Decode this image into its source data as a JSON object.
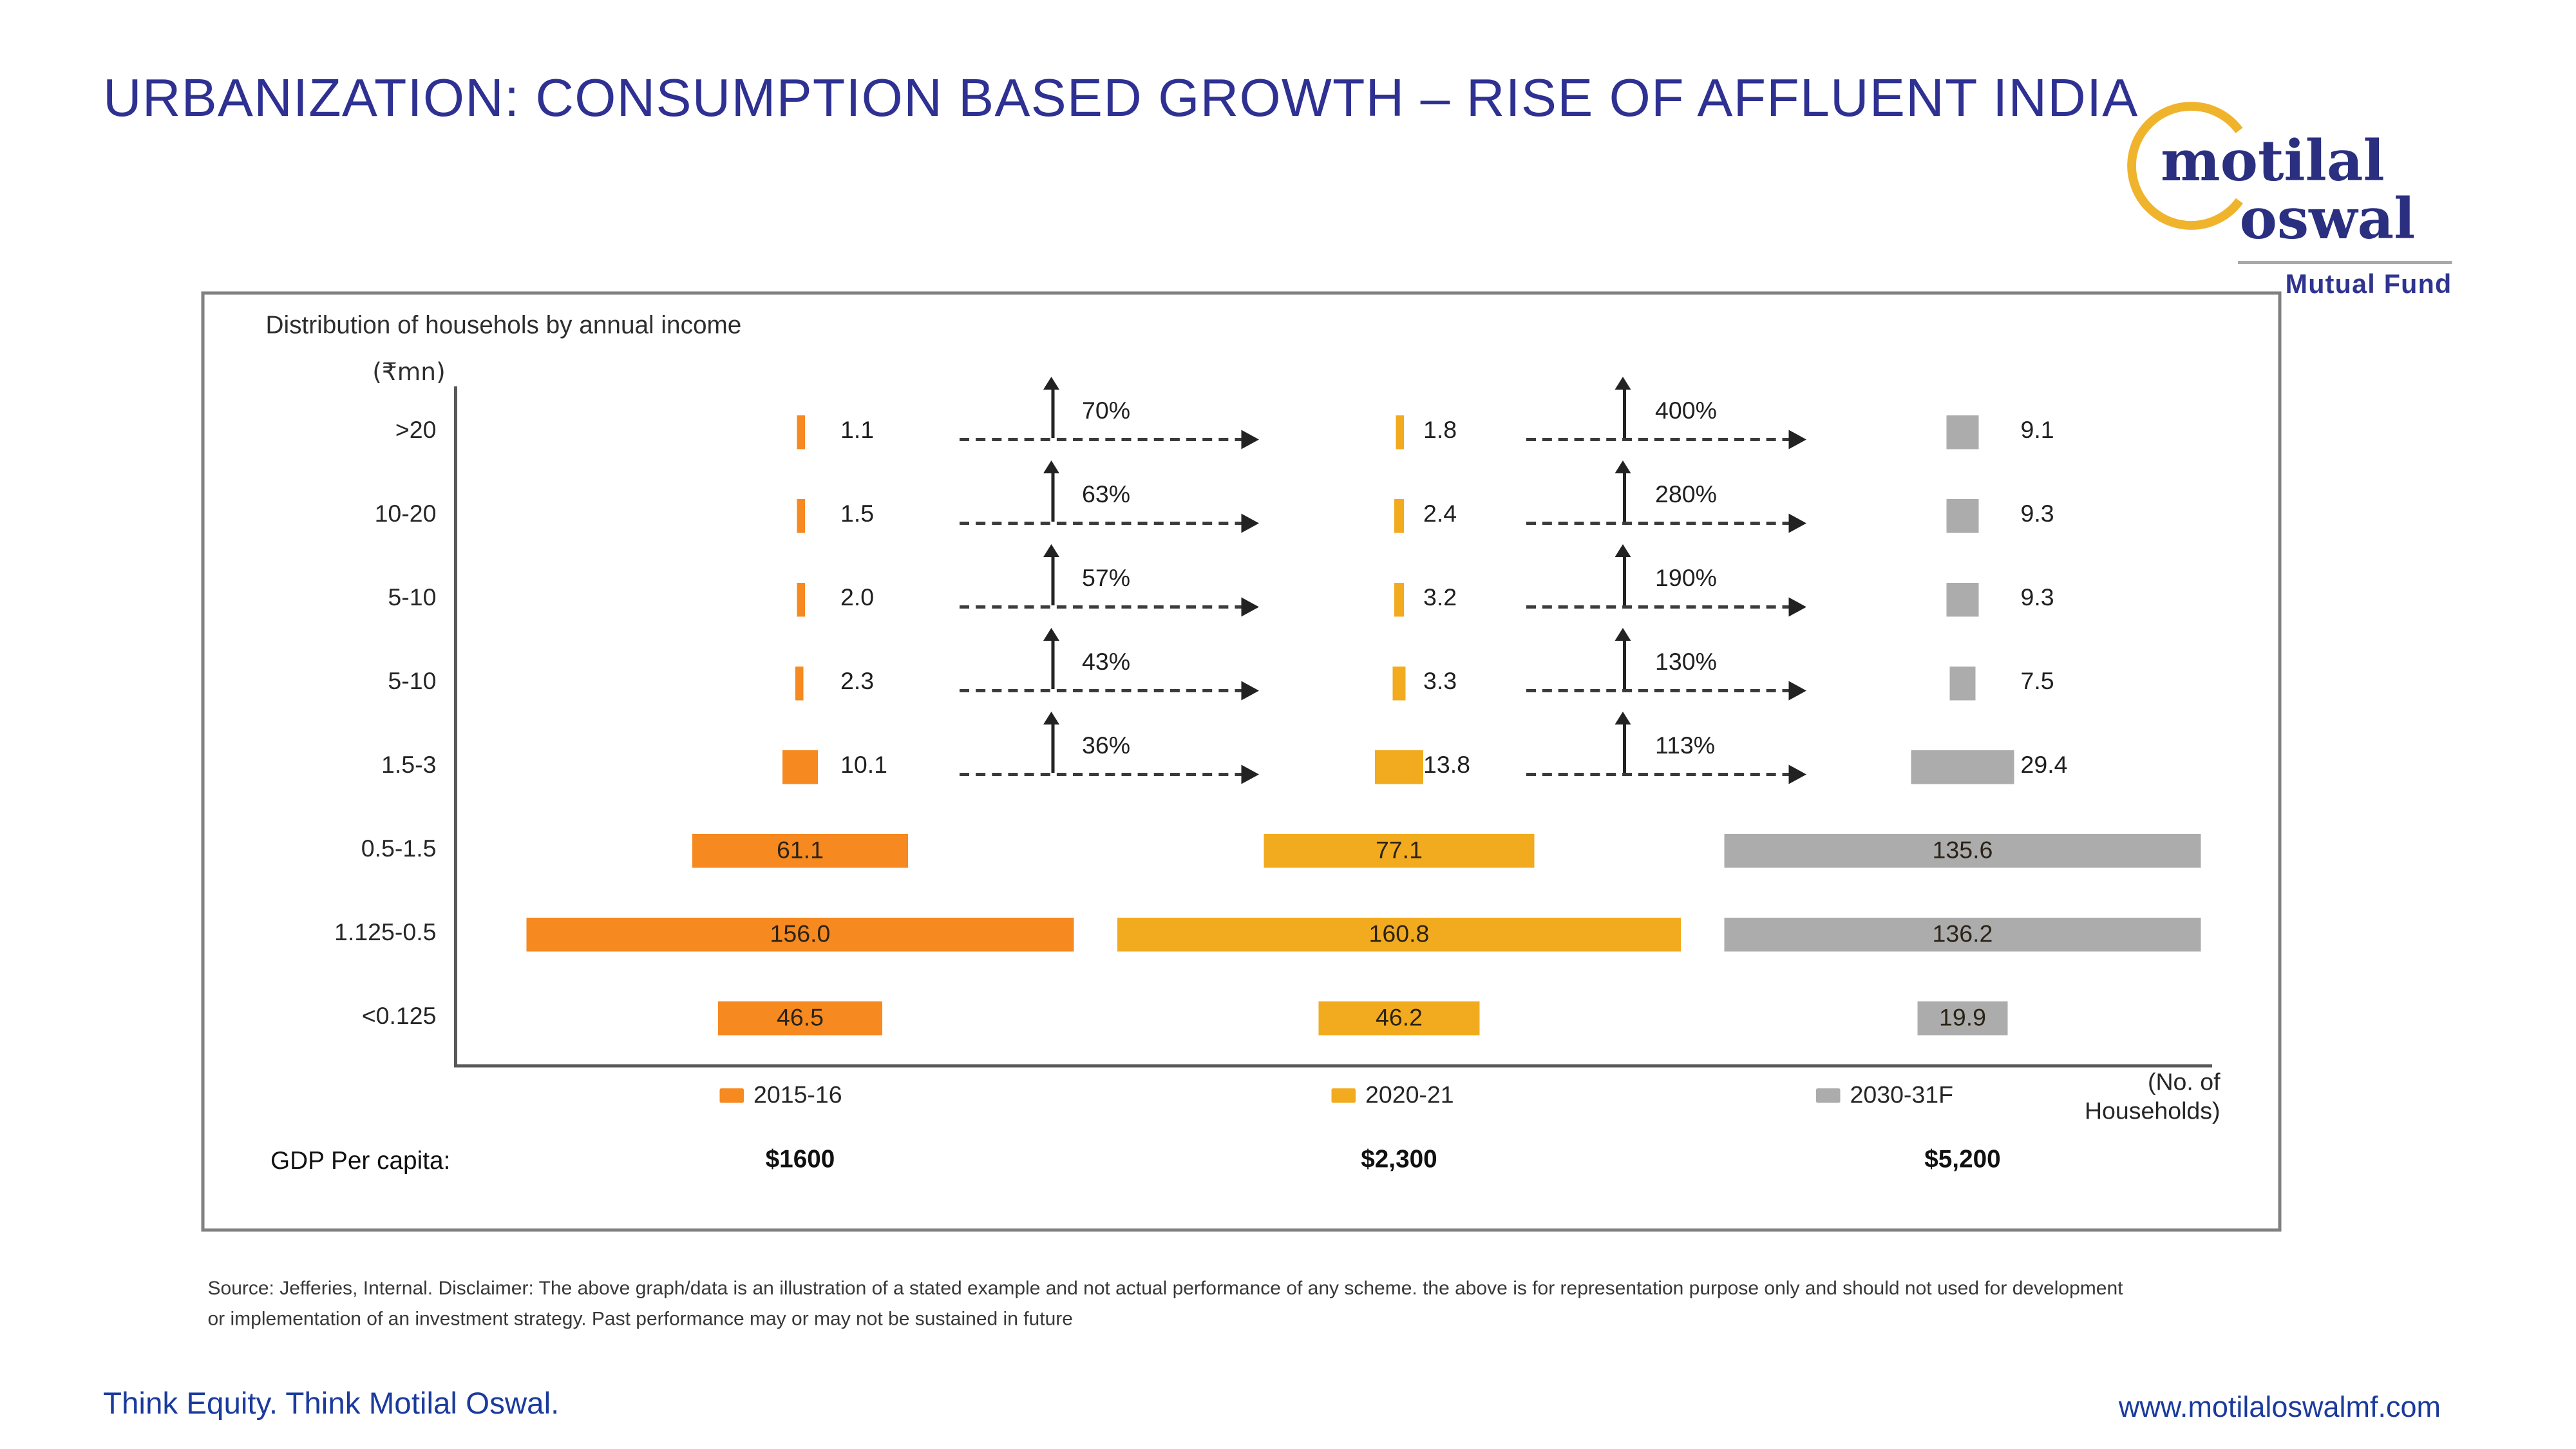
{
  "slide": {
    "title": "URBANIZATION: CONSUMPTION BASED GROWTH – RISE OF AFFLUENT INDIA",
    "logo": {
      "word1": "motilal",
      "word2": "oswal",
      "tagline": "Mutual Fund"
    },
    "footer_left": "Think Equity. Think Motilal Oswal.",
    "footer_right": "www.motilaloswalmf.com",
    "disclaimer_lines": [
      "Source: Jefferies, Internal. Disclaimer: The above graph/data is an illustration of a stated example and not actual performance of any scheme. the above is for representation purpose only and should not used for development",
      "or implementation of an investment strategy. Past performance may or may not be sustained in future"
    ],
    "colors": {
      "title_blue": "#2E3192",
      "footer_blue": "#1A3A9C",
      "logo_indigo": "#2A2F80",
      "logo_gold": "#EFB32C"
    }
  },
  "chart_data": {
    "type": "bar",
    "orientation": "horizontal",
    "title": "Distribution of househols by annual income",
    "unit_label": "(₹mn)",
    "categories": [
      ">20",
      "10-20",
      "5-10",
      "5-10",
      "1.5-3",
      "0.5-1.5",
      "1.125-0.5",
      "<0.125"
    ],
    "series": [
      {
        "name": "2015-16",
        "color": "#F6891F",
        "values": [
          1.1,
          1.5,
          2.0,
          2.3,
          10.1,
          61.1,
          156.0,
          46.5
        ],
        "labels": [
          "1.1",
          "1.5",
          "2.0",
          "2.3",
          "10.1",
          "61.1",
          "156.0",
          "46.5"
        ]
      },
      {
        "name": "2020-21",
        "color": "#F2AB1E",
        "values": [
          1.8,
          2.4,
          3.2,
          3.3,
          13.8,
          77.1,
          160.8,
          46.2
        ],
        "labels": [
          "1.8",
          "2.4",
          "3.2",
          "3.3",
          "13.8",
          "77.1",
          "160.8",
          "46.2"
        ]
      },
      {
        "name": "2030-31F",
        "color": "#ACACAC",
        "values": [
          9.1,
          9.3,
          9.3,
          7.5,
          29.4,
          135.6,
          136.2,
          19.9
        ],
        "labels": [
          "9.1",
          "9.3",
          "9.3",
          "7.5",
          "29.4",
          "135.6",
          "136.2",
          "19.9"
        ]
      }
    ],
    "growth_2015_to_2020": [
      "70%",
      "63%",
      "57%",
      "43%",
      "36%"
    ],
    "growth_2020_to_2030": [
      "400%",
      "280%",
      "190%",
      "130%",
      "113%"
    ],
    "axis_note_lines": [
      "(No. of",
      "Households)"
    ],
    "gdp": {
      "label": "GDP Per capita:",
      "values": [
        "$1600",
        "$2,300",
        "$5,200"
      ]
    },
    "legend_position": "bottom",
    "grid": false
  }
}
